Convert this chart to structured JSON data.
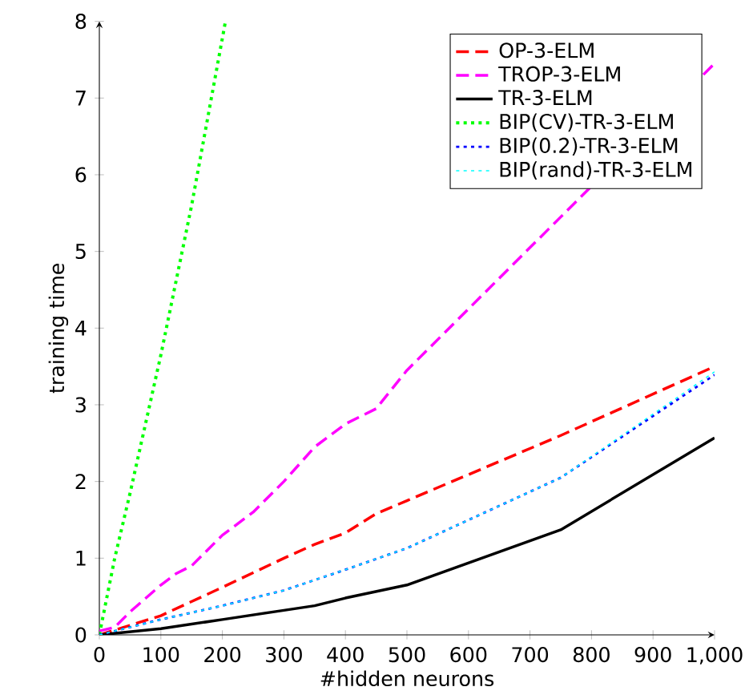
{
  "chart_data": {
    "type": "line",
    "xlabel": "#hidden neurons",
    "ylabel": "training time",
    "xlim": [
      0,
      1000
    ],
    "ylim": [
      0,
      8
    ],
    "xticks": [
      0,
      100,
      200,
      300,
      400,
      500,
      600,
      700,
      800,
      900,
      {
        "value": 1000,
        "label": "1,000"
      }
    ],
    "yticks": [
      0,
      1,
      2,
      3,
      4,
      5,
      6,
      7,
      8
    ],
    "legend": "top right",
    "grid": false,
    "marker": "none",
    "series": [
      {
        "name": "OP-3-ELM",
        "color": "#ff0000",
        "line_style": "dashed",
        "x": [
          0,
          100,
          200,
          300,
          350,
          400,
          450,
          500,
          750,
          1000
        ],
        "values": [
          0,
          0.25,
          0.62,
          1.0,
          1.18,
          1.33,
          1.58,
          1.75,
          2.6,
          3.5
        ]
      },
      {
        "name": "TROP-3-ELM",
        "color": "#ff00ff",
        "line_style": "dashed",
        "x": [
          0,
          25,
          50,
          100,
          125,
          150,
          200,
          250,
          300,
          350,
          400,
          450,
          500,
          750,
          1000
        ],
        "values": [
          0.05,
          0.1,
          0.3,
          0.65,
          0.8,
          0.9,
          1.3,
          1.6,
          2.0,
          2.45,
          2.75,
          2.95,
          3.45,
          5.45,
          7.45
        ]
      },
      {
        "name": "TR-3-ELM",
        "color": "#000000",
        "line_style": "solid",
        "x": [
          0,
          100,
          200,
          300,
          350,
          400,
          500,
          750,
          1000
        ],
        "values": [
          0,
          0.08,
          0.2,
          0.32,
          0.38,
          0.48,
          0.65,
          1.37,
          2.57
        ]
      },
      {
        "name": "BIP(CV)-TR-3-ELM",
        "color": "#00ff00",
        "line_style": "dotted",
        "x": [
          0,
          25,
          50,
          100,
          150,
          205
        ],
        "values": [
          0,
          1.0,
          1.85,
          3.65,
          5.6,
          8
        ]
      },
      {
        "name": "BIP(0.2)-TR-3-ELM",
        "color": "#0000ff",
        "line_style": "dotted",
        "x": [
          0,
          100,
          200,
          300,
          400,
          500,
          750,
          1000
        ],
        "values": [
          0,
          0.2,
          0.38,
          0.58,
          0.85,
          1.13,
          2.05,
          3.39
        ]
      },
      {
        "name": "BIP(rand)-TR-3-ELM",
        "color": "#00ffff",
        "line_style": "dotted",
        "x": [
          0,
          100,
          200,
          300,
          400,
          500,
          750,
          1000
        ],
        "values": [
          0,
          0.2,
          0.38,
          0.58,
          0.85,
          1.13,
          2.05,
          3.43
        ]
      }
    ]
  }
}
